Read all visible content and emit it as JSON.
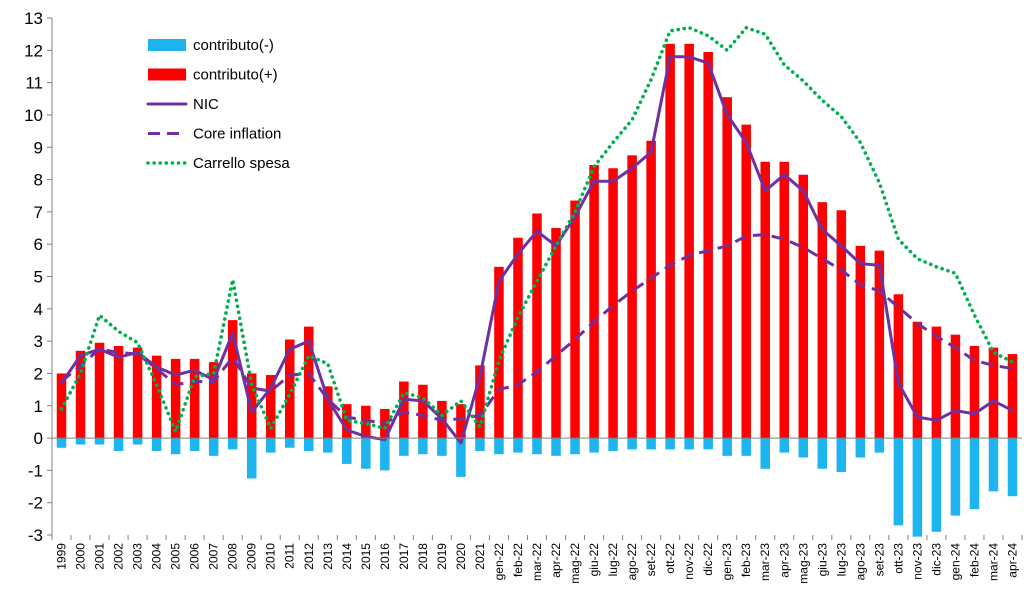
{
  "chart_data": {
    "type": "bar",
    "title": "",
    "xlabel": "",
    "ylabel": "",
    "ylim": [
      -3,
      13
    ],
    "yticks": [
      -3,
      -2,
      -1,
      0,
      1,
      2,
      3,
      4,
      5,
      6,
      7,
      8,
      9,
      10,
      11,
      12,
      13
    ],
    "grid": false,
    "legend_position": "top-left",
    "categories": [
      "1999",
      "2000",
      "2001",
      "2002",
      "2003",
      "2004",
      "2005",
      "2006",
      "2007",
      "2008",
      "2009",
      "2010",
      "2011",
      "2012",
      "2013",
      "2014",
      "2015",
      "2016",
      "2017",
      "2018",
      "2019",
      "2020",
      "2021",
      "gen-22",
      "feb-22",
      "mar-22",
      "apr-22",
      "mag-22",
      "giu-22",
      "lug-22",
      "ago-22",
      "set-22",
      "ott-22",
      "nov-22",
      "dic-22",
      "gen-23",
      "feb-23",
      "mar-23",
      "apr-23",
      "mag-23",
      "giu-23",
      "lug-23",
      "ago-23",
      "set-23",
      "ott-23",
      "nov-23",
      "dic-23",
      "gen-24",
      "feb-24",
      "mar-24",
      "apr-24"
    ],
    "series": [
      {
        "name": "contributo(-)",
        "kind": "bar",
        "color": "#1EB4F0",
        "values": [
          -0.3,
          -0.2,
          -0.2,
          -0.4,
          -0.2,
          -0.4,
          -0.5,
          -0.4,
          -0.55,
          -0.35,
          -1.25,
          -0.45,
          -0.3,
          -0.4,
          -0.45,
          -0.8,
          -0.95,
          -1.0,
          -0.55,
          -0.5,
          -0.55,
          -1.2,
          -0.4,
          -0.5,
          -0.45,
          -0.5,
          -0.55,
          -0.5,
          -0.45,
          -0.4,
          -0.35,
          -0.35,
          -0.35,
          -0.35,
          -0.35,
          -0.55,
          -0.55,
          -0.95,
          -0.45,
          -0.6,
          -0.95,
          -1.05,
          -0.6,
          -0.45,
          -2.7,
          -3.05,
          -2.9,
          -2.4,
          -2.2,
          -1.65,
          -1.8
        ]
      },
      {
        "name": "contributo(+)",
        "kind": "bar",
        "color": "#FF0000",
        "values": [
          2.0,
          2.7,
          2.95,
          2.85,
          2.8,
          2.55,
          2.45,
          2.45,
          2.35,
          3.65,
          2.0,
          1.95,
          3.05,
          3.45,
          1.6,
          1.05,
          1.0,
          0.9,
          1.75,
          1.65,
          1.15,
          1.05,
          2.25,
          5.3,
          6.2,
          6.95,
          6.5,
          7.35,
          8.45,
          8.35,
          8.75,
          9.2,
          12.2,
          12.2,
          11.95,
          10.55,
          9.7,
          8.55,
          8.55,
          8.15,
          7.3,
          7.05,
          5.95,
          5.8,
          4.45,
          3.6,
          3.45,
          3.2,
          2.85,
          2.8,
          2.6
        ]
      },
      {
        "name": "NIC",
        "kind": "line",
        "style": "solid",
        "color": "#7030A0",
        "values": [
          1.7,
          2.55,
          2.75,
          2.5,
          2.65,
          2.2,
          1.95,
          2.1,
          1.8,
          3.25,
          0.8,
          1.55,
          2.75,
          3.0,
          1.2,
          0.25,
          0.05,
          -0.05,
          1.2,
          1.15,
          0.6,
          -0.15,
          1.9,
          4.85,
          5.7,
          6.4,
          5.95,
          6.85,
          7.95,
          7.95,
          8.35,
          8.85,
          11.8,
          11.8,
          11.6,
          10.0,
          9.15,
          7.65,
          8.15,
          7.65,
          6.45,
          5.95,
          5.4,
          5.35,
          1.7,
          0.65,
          0.55,
          0.85,
          0.75,
          1.15,
          0.85
        ]
      },
      {
        "name": "Core inflation",
        "kind": "line",
        "style": "dashed",
        "color": "#7030A0",
        "values": [
          1.75,
          2.25,
          2.75,
          2.65,
          2.6,
          2.15,
          1.65,
          1.75,
          1.75,
          2.5,
          1.55,
          1.45,
          1.95,
          2.0,
          1.2,
          0.65,
          0.55,
          0.45,
          0.8,
          0.7,
          0.55,
          0.6,
          0.7,
          1.5,
          1.65,
          2.05,
          2.55,
          3.05,
          3.6,
          4.1,
          4.55,
          4.95,
          5.35,
          5.65,
          5.8,
          5.95,
          6.25,
          6.3,
          6.15,
          5.9,
          5.55,
          5.2,
          4.75,
          4.55,
          4.05,
          3.55,
          3.15,
          2.8,
          2.4,
          2.25,
          2.15
        ]
      },
      {
        "name": "Carrello spesa",
        "kind": "line",
        "style": "dotted",
        "color": "#00B050",
        "values": [
          0.9,
          2.0,
          3.8,
          3.3,
          2.95,
          1.65,
          0.2,
          1.9,
          2.0,
          4.9,
          1.65,
          0.3,
          1.35,
          2.55,
          2.3,
          0.55,
          0.45,
          0.3,
          1.4,
          1.25,
          0.7,
          1.15,
          0.35,
          2.4,
          3.75,
          4.85,
          5.95,
          7.0,
          8.4,
          9.15,
          9.85,
          11.1,
          12.6,
          12.7,
          12.45,
          12.0,
          12.7,
          12.5,
          11.55,
          11.05,
          10.45,
          9.95,
          9.15,
          7.9,
          6.15,
          5.55,
          5.3,
          5.1,
          3.8,
          2.65,
          2.35
        ]
      }
    ]
  }
}
